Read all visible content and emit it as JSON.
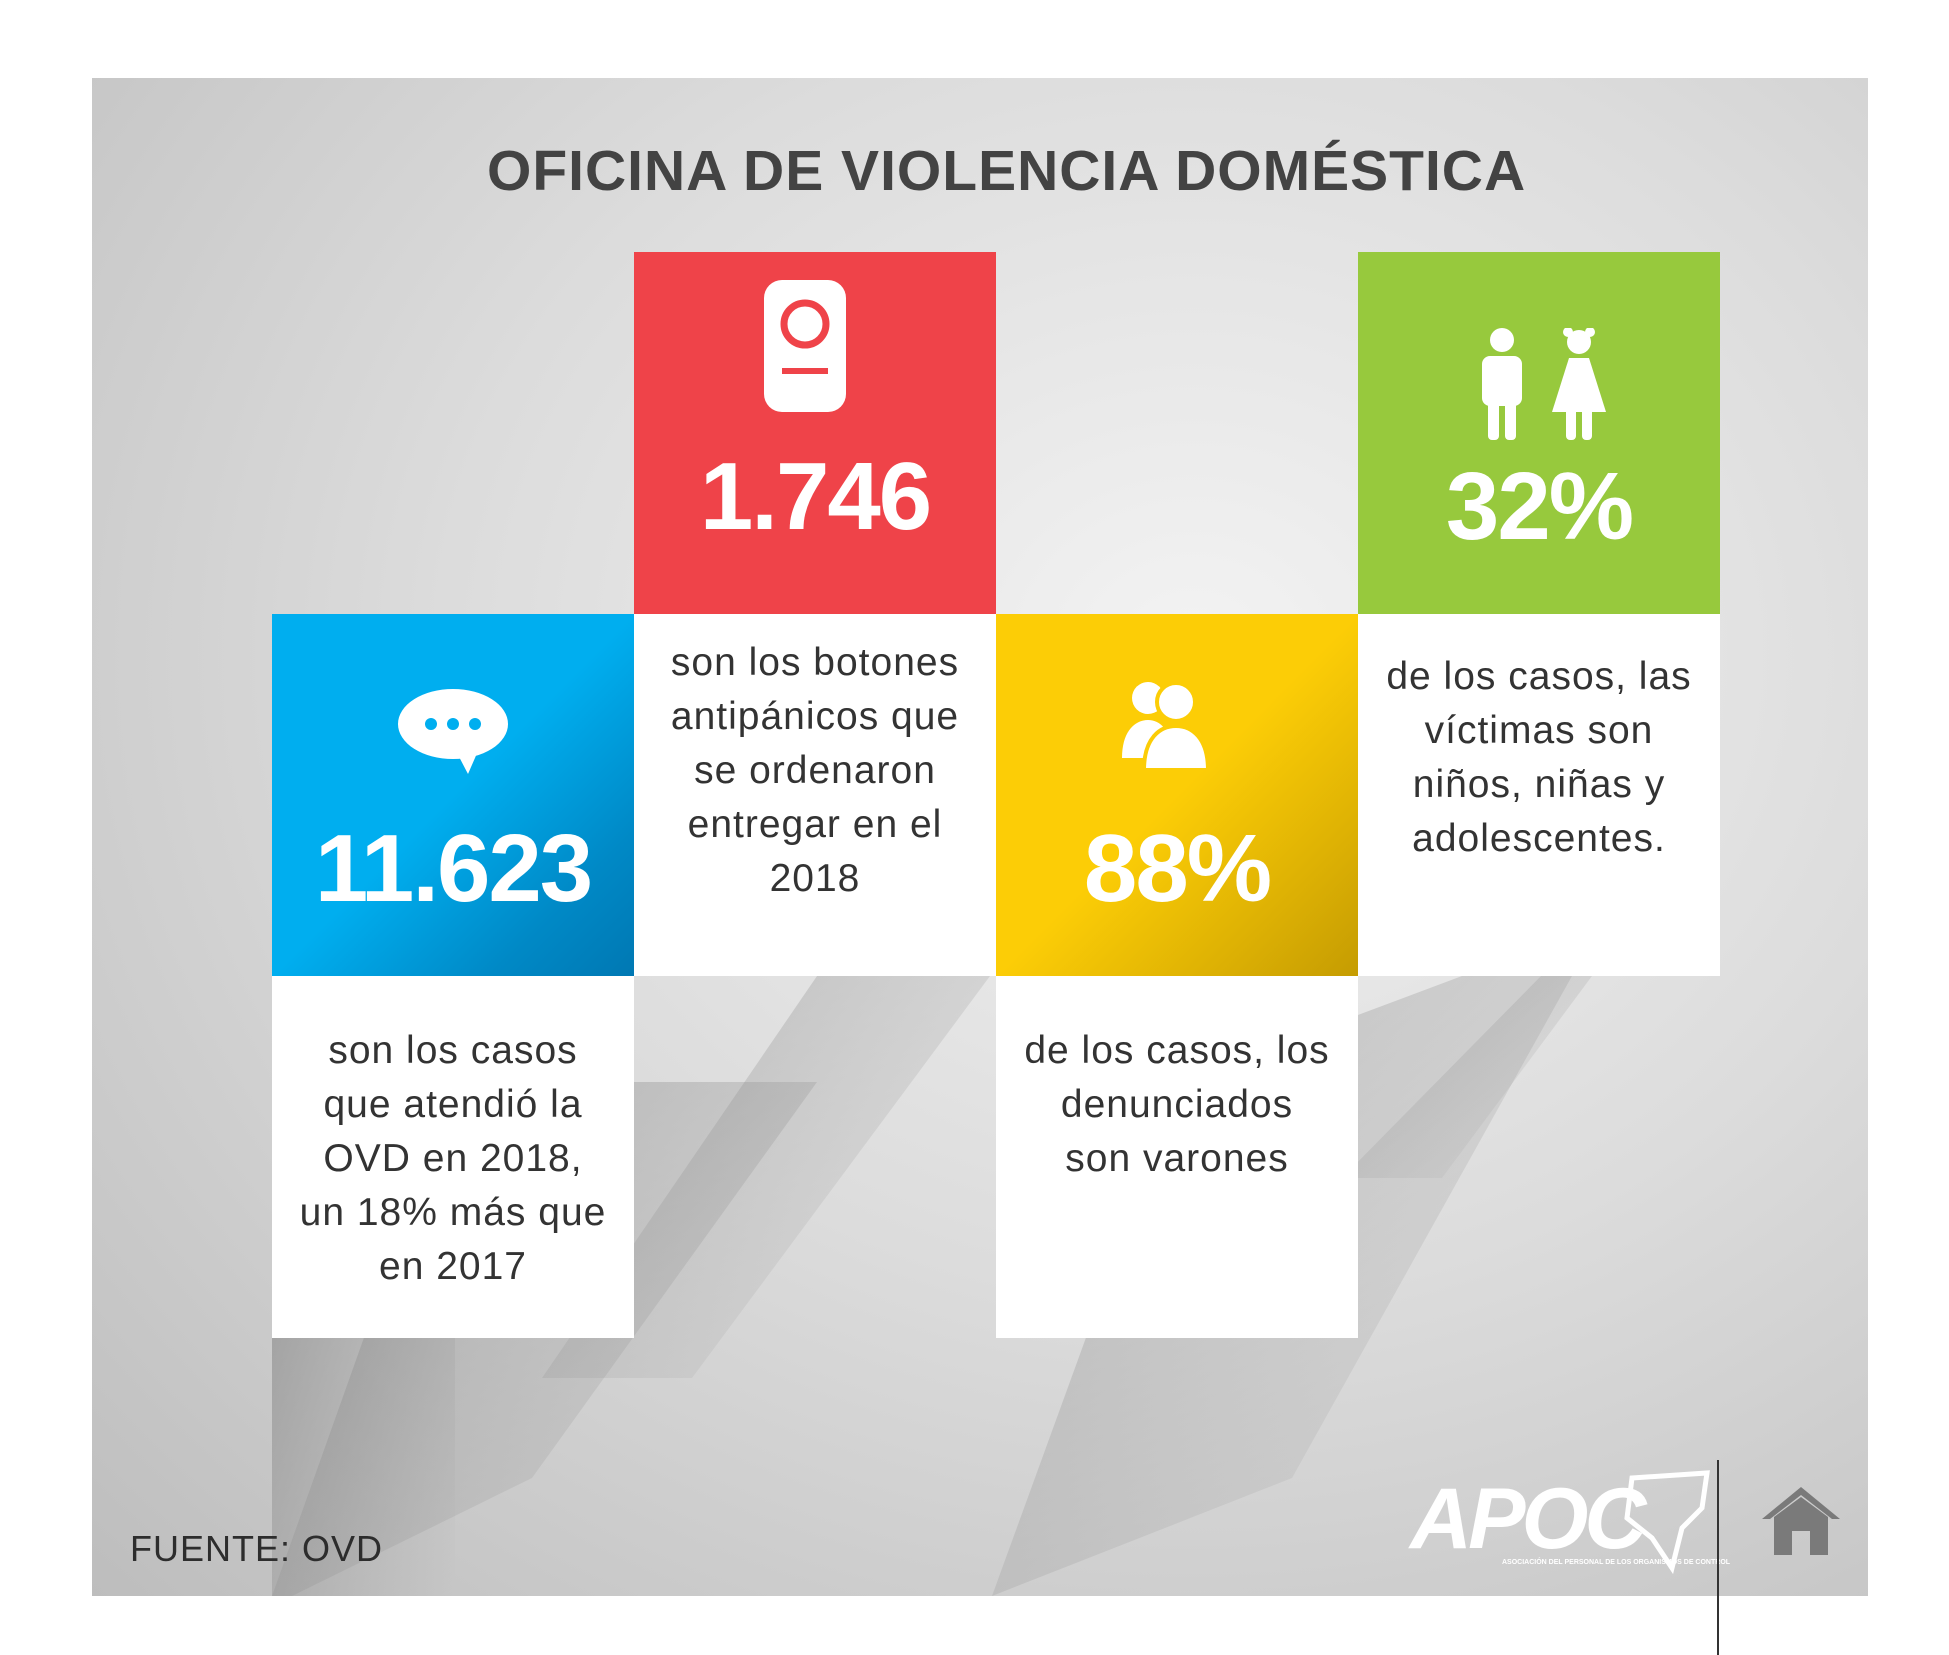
{
  "title": "OFICINA DE VIOLENCIA DOMÉSTICA",
  "colors": {
    "blue": "#00aeef",
    "red": "#ef4349",
    "yellow": "#fccd06",
    "green": "#97c93d",
    "title": "#434343"
  },
  "cards": [
    {
      "value": "11.623",
      "icon": "chat-bubble-icon",
      "description": "son los casos\nque atendió la\nOVD en 2018,\nun 18% más que\nen 2017"
    },
    {
      "value": "1.746",
      "icon": "panic-button-icon",
      "description": "son los botones\nantipánicos que\nse ordenaron\nentregar en el\n2018"
    },
    {
      "value": "88%",
      "icon": "people-icon",
      "description": "de los casos, los\ndenunciados\nson varones"
    },
    {
      "value": "32%",
      "icon": "boy-girl-icon",
      "description": "de los casos, las\nvíctimas son\nniños, niñas y\nadolescentes."
    }
  ],
  "source": "FUENTE: OVD",
  "logo": {
    "name": "APOC",
    "tagline": "ASOCIACIÓN DEL PERSONAL DE LOS ORGANISMOS DE CONTROL"
  },
  "home_icon": "home-icon"
}
